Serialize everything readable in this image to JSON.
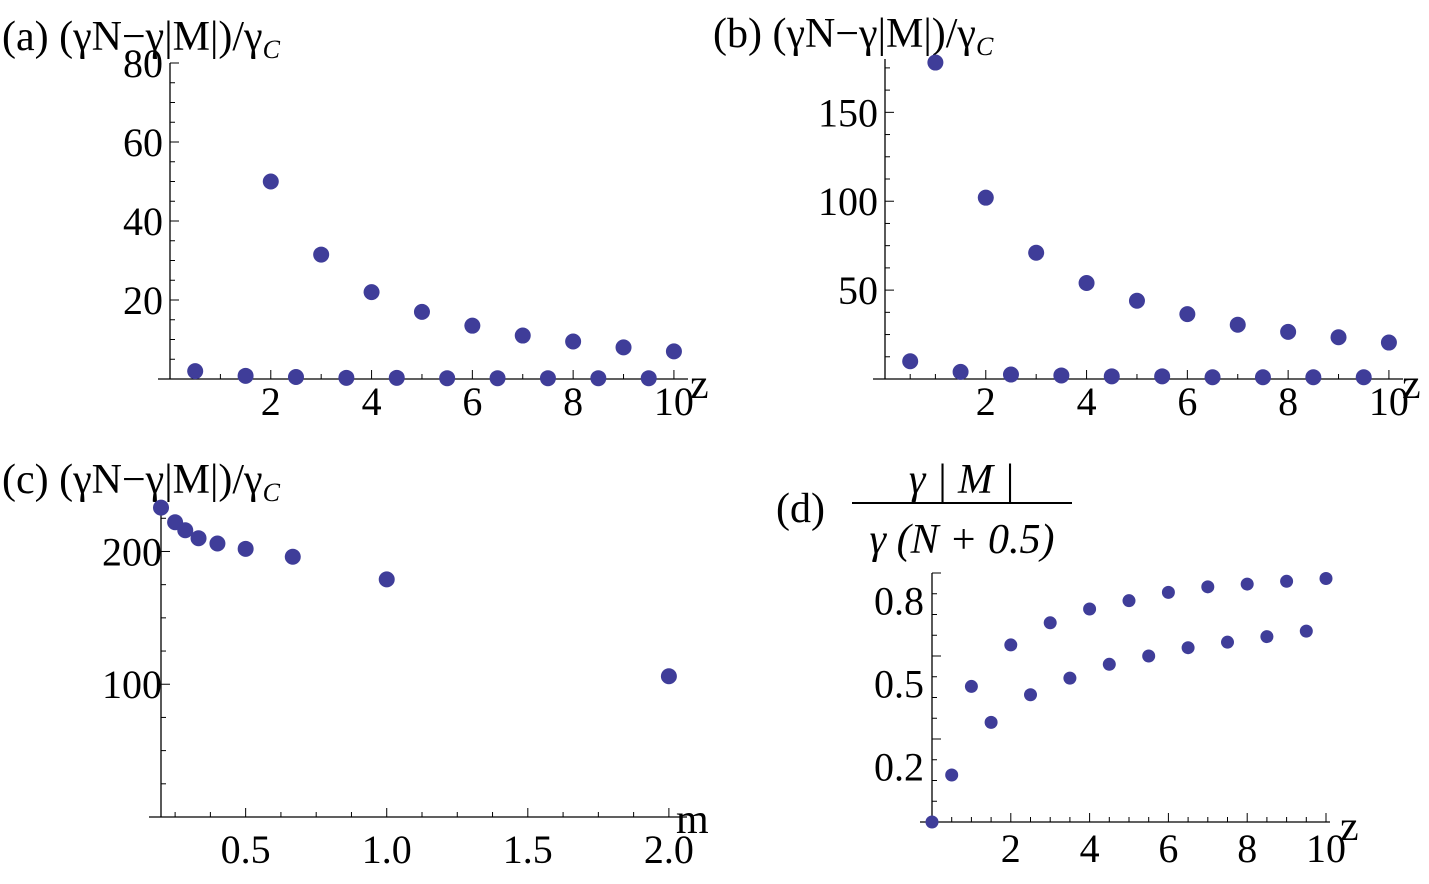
{
  "colors": {
    "marker": "#3f3d99",
    "axis": "#000000",
    "background": "#ffffff"
  },
  "chart_data": [
    {
      "id": "a",
      "type": "scatter",
      "title": "(a) (γN−γ|M|)/γ",
      "title_sub": "C",
      "xlabel": "z",
      "ylabel": "",
      "xlim": [
        0,
        10.2
      ],
      "ylim": [
        0,
        80
      ],
      "x_ticks": [
        2,
        4,
        6,
        8,
        10
      ],
      "x_tick_labels": [
        "2",
        "4",
        "6",
        "8",
        "10"
      ],
      "y_ticks": [
        20,
        40,
        60,
        80
      ],
      "y_tick_labels": [
        "20",
        "40",
        "60",
        "80"
      ],
      "grid": false,
      "series": [
        {
          "x": [
            0.5,
            1.5,
            2.5,
            3.5,
            4.5,
            5.5,
            6.5,
            7.5,
            8.5,
            9.5
          ],
          "y": [
            2,
            0.8,
            0.5,
            0.3,
            0.3,
            0.2,
            0.2,
            0.2,
            0.2,
            0.2
          ]
        },
        {
          "x": [
            2,
            3,
            4,
            5,
            6,
            7,
            8,
            9,
            10
          ],
          "y": [
            50,
            31.5,
            22,
            17,
            13.5,
            11,
            9.5,
            8,
            7
          ]
        }
      ]
    },
    {
      "id": "b",
      "type": "scatter",
      "title": "(b) (γN−γ|M|)/γ",
      "title_sub": "C",
      "xlabel": "z",
      "ylabel": "",
      "xlim": [
        0,
        10.2
      ],
      "ylim": [
        0,
        180
      ],
      "x_ticks": [
        2,
        4,
        6,
        8,
        10
      ],
      "x_tick_labels": [
        "2",
        "4",
        "6",
        "8",
        "10"
      ],
      "y_ticks": [
        50,
        100,
        150
      ],
      "y_tick_labels": [
        "50",
        "100",
        "150"
      ],
      "grid": false,
      "series": [
        {
          "x": [
            0.5,
            1.5,
            2.5,
            3.5,
            4.5,
            5.5,
            6.5,
            7.5,
            8.5,
            9.5
          ],
          "y": [
            10,
            4,
            2.5,
            2,
            1.5,
            1.5,
            1,
            1,
            1,
            1
          ]
        },
        {
          "x": [
            1,
            2,
            3,
            4,
            5,
            6,
            7,
            8,
            9,
            10
          ],
          "y": [
            178,
            102,
            71,
            54,
            44,
            36.5,
            30.5,
            26.5,
            23.5,
            20.5
          ]
        }
      ]
    },
    {
      "id": "c",
      "type": "scatter",
      "title": "(c) (γN−γ|M|)/γ",
      "title_sub": "C",
      "xlabel": "m",
      "ylabel": "",
      "xlim": [
        0.2,
        2.05
      ],
      "ylim": [
        0,
        235
      ],
      "x_ticks": [
        0.5,
        1.0,
        1.5,
        2.0
      ],
      "x_tick_labels": [
        "0.5",
        "1.0",
        "1.5",
        "2.0"
      ],
      "y_ticks": [
        100,
        200
      ],
      "y_tick_labels": [
        "100",
        "200"
      ],
      "grid": false,
      "series": [
        {
          "x": [
            0.2,
            0.25,
            0.286,
            0.333,
            0.4,
            0.5,
            0.667,
            1.0,
            2.0
          ],
          "y": [
            233,
            222,
            216,
            210,
            206,
            202,
            196,
            179,
            106
          ]
        }
      ]
    },
    {
      "id": "d",
      "type": "scatter",
      "title": "(d)",
      "title_numerator": "γ | M |",
      "title_denominator": "γ (N + 0.5)",
      "xlabel": "z",
      "ylabel": "",
      "xlim": [
        0,
        10
      ],
      "ylim": [
        0,
        0.9
      ],
      "x_ticks": [
        2,
        4,
        6,
        8,
        10
      ],
      "x_tick_labels": [
        "2",
        "4",
        "6",
        "8",
        "10"
      ],
      "y_ticks": [
        0.2,
        0.5,
        0.8
      ],
      "y_tick_labels": [
        "0.2",
        "0.5",
        "0.8"
      ],
      "grid": false,
      "series": [
        {
          "x": [
            0,
            0.5,
            1.5,
            2.5,
            3.5,
            4.5,
            5.5,
            6.5,
            7.5,
            8.5,
            9.5
          ],
          "y": [
            0,
            0.17,
            0.36,
            0.46,
            0.52,
            0.57,
            0.6,
            0.63,
            0.65,
            0.67,
            0.69
          ]
        },
        {
          "x": [
            1,
            2,
            3,
            4,
            5,
            6,
            7,
            8,
            9,
            10
          ],
          "y": [
            0.49,
            0.64,
            0.72,
            0.77,
            0.8,
            0.83,
            0.85,
            0.86,
            0.87,
            0.88
          ]
        }
      ]
    }
  ]
}
